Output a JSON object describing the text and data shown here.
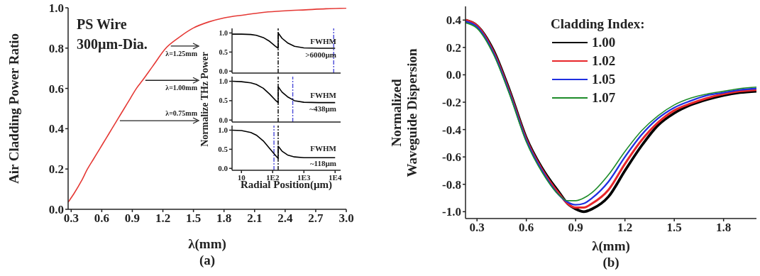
{
  "chart_data": [
    {
      "type": "line",
      "title": "(a)",
      "xlabel": "λ(mm)",
      "ylabel": "Air Cladding Power Ratio",
      "x": [
        0.27,
        0.33,
        0.4,
        0.46,
        0.52,
        0.58,
        0.64,
        0.7,
        0.76,
        0.82,
        0.88,
        0.94,
        1.0,
        1.1,
        1.23,
        1.35,
        1.5,
        1.65,
        1.8,
        2.0,
        2.2,
        2.4,
        2.6,
        2.8,
        3.0
      ],
      "series": [
        {
          "color": "#e53935",
          "values": [
            0.035,
            0.08,
            0.14,
            0.2,
            0.25,
            0.3,
            0.35,
            0.4,
            0.45,
            0.5,
            0.55,
            0.6,
            0.64,
            0.71,
            0.8,
            0.85,
            0.9,
            0.93,
            0.95,
            0.965,
            0.978,
            0.985,
            0.99,
            0.995,
            0.998
          ]
        }
      ],
      "xlim": [
        0.27,
        3.0
      ],
      "ylim": [
        0,
        1.0
      ],
      "xticks": [
        0.3,
        0.6,
        0.9,
        1.2,
        1.5,
        1.8,
        2.1,
        2.4,
        2.7,
        {
          "value": 3,
          "label": "3.0"
        }
      ],
      "yticks": [
        {
          "value": 0,
          "label": "0.0"
        },
        0.2,
        0.4,
        0.6,
        0.8,
        {
          "value": 1,
          "label": "1.0"
        }
      ],
      "annotations": [
        "PS Wire",
        "300µm-Dia.",
        {
          "text": "λ=1.25mm",
          "x": 1.25,
          "y": 0.81
        },
        {
          "text": "λ=1.00mm",
          "x": 1.0,
          "y": 0.64
        },
        {
          "text": "λ=0.75mm",
          "x": 0.75,
          "y": 0.44
        }
      ]
    },
    {
      "type": "line",
      "log": "x",
      "tick_labels": "y",
      "x": [
        5,
        10,
        20,
        30,
        50,
        80,
        120,
        150,
        150,
        200,
        300,
        500,
        1000,
        3000,
        10000
      ],
      "series": [
        {
          "color": "#000000",
          "values": [
            0.97,
            0.97,
            0.96,
            0.94,
            0.88,
            0.78,
            0.66,
            0.6,
            1.0,
            0.86,
            0.74,
            0.65,
            0.61,
            0.6,
            0.6
          ]
        }
      ],
      "xlim": [
        5,
        15000
      ],
      "ylim": [
        -0.05,
        1.12
      ],
      "xticks": [
        {
          "value": 10,
          "label": null
        },
        {
          "value": 100,
          "label": null
        },
        {
          "value": 1000,
          "label": null
        },
        {
          "value": 10000,
          "label": null
        }
      ],
      "yticks": [
        {
          "value": 0,
          "label": "0.0"
        },
        0.5,
        {
          "value": 1,
          "label": "1.0"
        }
      ],
      "ref_lines": [
        {
          "axis": "x",
          "value": 150,
          "color": "#000000",
          "line_style": "dashed"
        },
        {
          "axis": "x",
          "value": 9000,
          "color": "#4a4ad8",
          "line_style": "dashed"
        }
      ],
      "annotations": [
        "FWHM",
        ">6000µm"
      ]
    },
    {
      "type": "line",
      "log": "x",
      "tick_labels": "y",
      "ylabel": "Normalize THz Power",
      "x": [
        5,
        10,
        20,
        30,
        50,
        80,
        120,
        150,
        150,
        200,
        300,
        500,
        1000,
        3000,
        10000
      ],
      "series": [
        {
          "color": "#000000",
          "values": [
            1.0,
            0.99,
            0.96,
            0.92,
            0.82,
            0.67,
            0.52,
            0.45,
            0.86,
            0.72,
            0.6,
            0.5,
            0.46,
            0.45,
            0.45
          ]
        }
      ],
      "xlim": [
        5,
        15000
      ],
      "ylim": [
        -0.05,
        1.12
      ],
      "xticks": [
        {
          "value": 10,
          "label": null
        },
        {
          "value": 100,
          "label": null
        },
        {
          "value": 1000,
          "label": null
        },
        {
          "value": 10000,
          "label": null
        }
      ],
      "yticks": [
        {
          "value": 0,
          "label": "0.0"
        },
        0.5,
        {
          "value": 1,
          "label": "1.0"
        }
      ],
      "ref_lines": [
        {
          "axis": "x",
          "value": 150,
          "color": "#000000",
          "line_style": "dashed"
        },
        {
          "axis": "x",
          "value": 440,
          "color": "#4a4ad8",
          "line_style": "dashed"
        }
      ],
      "annotations": [
        "FWHM",
        "~438µm"
      ]
    },
    {
      "type": "line",
      "log": "x",
      "xlabel": "Radial Position(µm)",
      "x": [
        5,
        10,
        20,
        30,
        50,
        80,
        120,
        150,
        150,
        200,
        300,
        500,
        1000,
        3000,
        10000
      ],
      "series": [
        {
          "color": "#000000",
          "values": [
            1.0,
            0.99,
            0.94,
            0.87,
            0.72,
            0.52,
            0.35,
            0.26,
            0.58,
            0.45,
            0.35,
            0.3,
            0.28,
            0.28,
            0.28
          ]
        }
      ],
      "xlim": [
        5,
        15000
      ],
      "ylim": [
        -0.05,
        1.12
      ],
      "xticks": [
        {
          "value": 10,
          "label": "10"
        },
        {
          "value": 100,
          "label": "1E2"
        },
        {
          "value": 1000,
          "label": "1E3"
        },
        {
          "value": 10000,
          "label": "1E4"
        }
      ],
      "yticks": [
        {
          "value": 0,
          "label": "0.0"
        },
        0.5,
        {
          "value": 1,
          "label": "1.0"
        }
      ],
      "ref_lines": [
        {
          "axis": "x",
          "value": 150,
          "color": "#000000",
          "line_style": "dashed"
        },
        {
          "axis": "x",
          "value": 110,
          "color": "#4a4ad8",
          "line_style": "dashed"
        }
      ],
      "annotations": [
        "FWHM",
        "~118µm"
      ]
    },
    {
      "type": "line",
      "title": "(b)",
      "xlabel": "λ(mm)",
      "ylabel": "Normalized\nWaveguide Dispersion",
      "legend": "top",
      "legend_title": "Cladding Index:",
      "x": [
        0.23,
        0.3,
        0.4,
        0.5,
        0.6,
        0.7,
        0.8,
        0.85,
        0.9,
        0.95,
        1.0,
        1.1,
        1.2,
        1.3,
        1.4,
        1.5,
        1.6,
        1.7,
        1.8,
        1.9,
        2.0
      ],
      "series": [
        {
          "name": "1.00",
          "color": "#000000",
          "values": [
            0.4,
            0.36,
            0.18,
            -0.12,
            -0.46,
            -0.69,
            -0.86,
            -0.94,
            -0.98,
            -1.0,
            -0.98,
            -0.89,
            -0.7,
            -0.52,
            -0.37,
            -0.28,
            -0.22,
            -0.18,
            -0.15,
            -0.13,
            -0.12
          ]
        },
        {
          "name": "1.02",
          "color": "#e8262a",
          "values": [
            0.4,
            0.36,
            0.17,
            -0.13,
            -0.47,
            -0.7,
            -0.87,
            -0.94,
            -0.97,
            -0.97,
            -0.94,
            -0.84,
            -0.65,
            -0.48,
            -0.35,
            -0.26,
            -0.21,
            -0.17,
            -0.14,
            -0.12,
            -0.11
          ]
        },
        {
          "name": "1.05",
          "color": "#1f2fe0",
          "values": [
            0.39,
            0.35,
            0.16,
            -0.14,
            -0.48,
            -0.71,
            -0.88,
            -0.93,
            -0.95,
            -0.94,
            -0.9,
            -0.78,
            -0.6,
            -0.44,
            -0.32,
            -0.24,
            -0.19,
            -0.15,
            -0.13,
            -0.11,
            -0.1
          ]
        },
        {
          "name": "1.07",
          "color": "#1e8c2a",
          "values": [
            0.38,
            0.34,
            0.15,
            -0.15,
            -0.49,
            -0.72,
            -0.88,
            -0.92,
            -0.92,
            -0.9,
            -0.86,
            -0.73,
            -0.56,
            -0.41,
            -0.3,
            -0.22,
            -0.17,
            -0.14,
            -0.12,
            -0.1,
            -0.09
          ]
        }
      ],
      "xlim": [
        0.23,
        2.0
      ],
      "ylim": [
        -1.05,
        0.5
      ],
      "xticks": [
        0.3,
        0.6,
        0.9,
        1.2,
        1.5,
        1.8
      ],
      "yticks": [
        {
          "value": -1,
          "label": "-1.0"
        },
        -0.8,
        -0.6,
        -0.4,
        -0.2,
        {
          "value": 0,
          "label": "0.0"
        },
        0.2,
        0.4
      ]
    }
  ]
}
